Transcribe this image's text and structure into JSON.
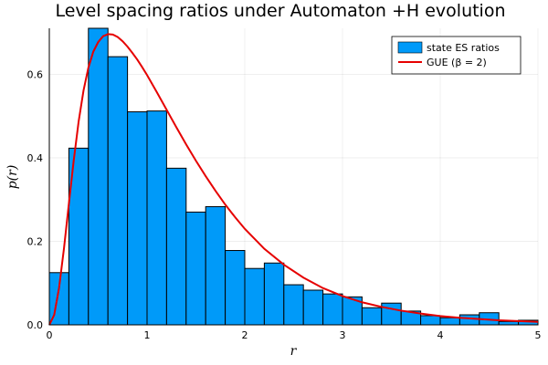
{
  "chart_data": {
    "type": "bar",
    "title": "Level spacing ratios under Automaton +H evolution",
    "xlabel": "r",
    "ylabel": "p(r)",
    "xlim": [
      0,
      5
    ],
    "ylim": [
      0,
      0.71
    ],
    "xticks": [
      "0",
      "1",
      "2",
      "3",
      "4",
      "5"
    ],
    "xtick_values": [
      0,
      1,
      2,
      3,
      4,
      5
    ],
    "yticks": [
      "0.0",
      "0.2",
      "0.4",
      "0.6"
    ],
    "ytick_values": [
      0,
      0.2,
      0.4,
      0.6
    ],
    "grid": true,
    "legend_position": "top-right",
    "bar_color": "#009af9",
    "line_color": "#e60000",
    "series": [
      {
        "name": "state ES ratios",
        "kind": "histogram",
        "bin_width": 0.2,
        "bin_starts": [
          0,
          0.2,
          0.4,
          0.6,
          0.8,
          1.0,
          1.2,
          1.4,
          1.6,
          1.8,
          2.0,
          2.2,
          2.4,
          2.6,
          2.8,
          3.0,
          3.2,
          3.4,
          3.6,
          3.8,
          4.0,
          4.2,
          4.4,
          4.6,
          4.8
        ],
        "values": [
          0.125,
          0.423,
          0.712,
          0.642,
          0.51,
          0.512,
          0.375,
          0.27,
          0.283,
          0.178,
          0.135,
          0.148,
          0.096,
          0.083,
          0.074,
          0.067,
          0.041,
          0.052,
          0.033,
          0.022,
          0.017,
          0.024,
          0.029,
          0.008,
          0.011
        ]
      },
      {
        "name": "GUE (β = 2)",
        "kind": "line",
        "x": [
          0,
          0.05,
          0.1,
          0.15,
          0.2,
          0.25,
          0.3,
          0.35,
          0.4,
          0.45,
          0.5,
          0.55,
          0.6,
          0.65,
          0.7,
          0.75,
          0.8,
          0.85,
          0.9,
          0.95,
          1.0,
          1.1,
          1.2,
          1.3,
          1.4,
          1.5,
          1.6,
          1.7,
          1.8,
          1.9,
          2.0,
          2.2,
          2.4,
          2.6,
          2.8,
          3.0,
          3.2,
          3.4,
          3.6,
          3.8,
          4.0,
          4.2,
          4.4,
          4.6,
          4.8,
          5.0
        ],
        "y": [
          0,
          0.024,
          0.089,
          0.183,
          0.29,
          0.394,
          0.487,
          0.561,
          0.616,
          0.654,
          0.677,
          0.691,
          0.696,
          0.695,
          0.689,
          0.679,
          0.666,
          0.651,
          0.635,
          0.617,
          0.598,
          0.557,
          0.515,
          0.473,
          0.432,
          0.393,
          0.356,
          0.321,
          0.288,
          0.258,
          0.23,
          0.182,
          0.144,
          0.113,
          0.088,
          0.069,
          0.054,
          0.043,
          0.034,
          0.027,
          0.021,
          0.017,
          0.014,
          0.011,
          0.009,
          0.007
        ]
      }
    ]
  }
}
